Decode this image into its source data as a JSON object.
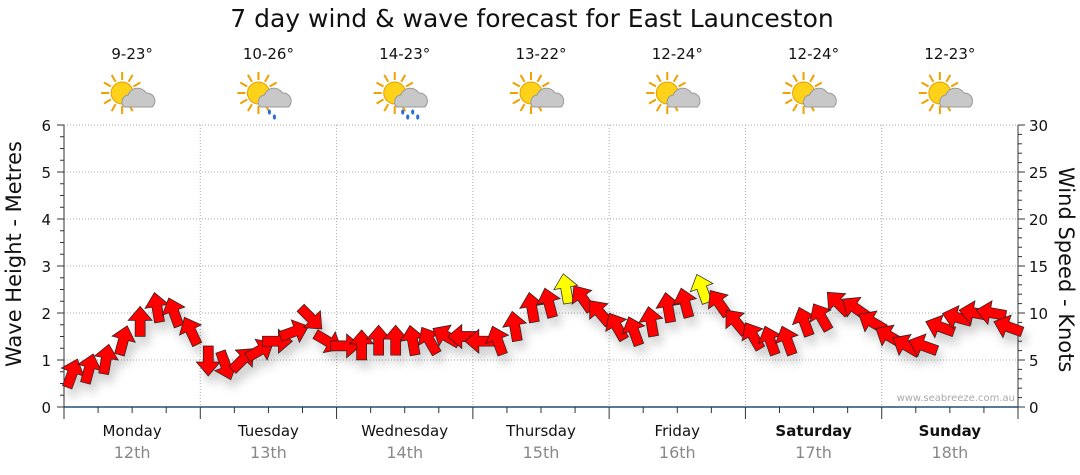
{
  "chart_data": {
    "type": "scatter",
    "title": "7 day wind & wave forecast for East Launceston",
    "ylabel": "Wave Height - Metres",
    "ylabel_right": "Wind Speed - Knots",
    "ylim": [
      0,
      6
    ],
    "ylim_right": [
      0,
      30
    ],
    "yticks": [
      "0",
      "1",
      "2",
      "3",
      "4",
      "5",
      "6"
    ],
    "yticks_right": [
      "0",
      "5",
      "10",
      "15",
      "20",
      "25",
      "30"
    ],
    "grid": true,
    "watermark": "www.seabreeze.com.au",
    "days": [
      {
        "day": "Monday",
        "date": "12th",
        "temp": "9-23°",
        "icon": "sun-cloud-icon",
        "bold": false
      },
      {
        "day": "Tuesday",
        "date": "13th",
        "temp": "10-26°",
        "icon": "sun-cloud-light-rain-icon",
        "bold": false
      },
      {
        "day": "Wednesday",
        "date": "14th",
        "temp": "14-23°",
        "icon": "sun-cloud-rain-icon",
        "bold": false
      },
      {
        "day": "Thursday",
        "date": "15th",
        "temp": "13-22°",
        "icon": "sun-cloud-icon",
        "bold": false
      },
      {
        "day": "Friday",
        "date": "16th",
        "temp": "12-24°",
        "icon": "sun-cloud-icon",
        "bold": false
      },
      {
        "day": "Saturday",
        "date": "17th",
        "temp": "12-24°",
        "icon": "sun-cloud-icon",
        "bold": true
      },
      {
        "day": "Sunday",
        "date": "18th",
        "temp": "12-23°",
        "icon": "sun-cloud-icon",
        "bold": true
      }
    ],
    "wind_interval_hours": 3,
    "wind_speed_knots": [
      3.5,
      4,
      5,
      7,
      9,
      10.5,
      10,
      8,
      5,
      4.5,
      5,
      6,
      7,
      8,
      9.5,
      7,
      6.5,
      6.5,
      7,
      7,
      7,
      7,
      7.5,
      7.5,
      7,
      7,
      8.5,
      10.5,
      11,
      12.5,
      11.5,
      10,
      8.5,
      8,
      9,
      10.5,
      11,
      12.5,
      11,
      9,
      7.5,
      7,
      7,
      9,
      9.5,
      11,
      10.5,
      9,
      7.5,
      6.5,
      6.5,
      8.5,
      9.5,
      10,
      10,
      8.5
    ],
    "wind_heading_deg": [
      20,
      15,
      10,
      15,
      0,
      -10,
      -20,
      -25,
      180,
      160,
      45,
      60,
      90,
      70,
      135,
      120,
      90,
      0,
      0,
      0,
      -10,
      -30,
      -60,
      -90,
      -90,
      -20,
      -10,
      -10,
      -15,
      -10,
      -35,
      -40,
      -30,
      -20,
      -10,
      -10,
      -15,
      -20,
      -35,
      -40,
      -30,
      -20,
      -20,
      -20,
      -30,
      -45,
      -55,
      -60,
      -60,
      -60,
      -70,
      -70,
      -75,
      -80,
      -80,
      -70
    ],
    "colors": {
      "normal": "#ff0000",
      "strong": "#ffff00",
      "grid": "#aaaaaa",
      "axis": "#1f4e79"
    },
    "strong_threshold_knots": 12
  }
}
